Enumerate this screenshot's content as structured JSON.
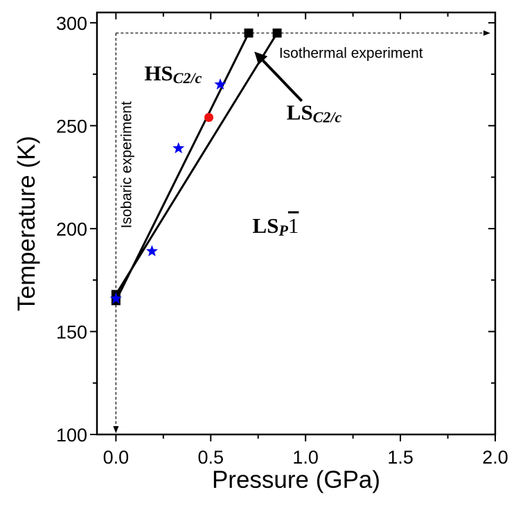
{
  "chart_data": {
    "type": "line",
    "xlabel": "Pressure (GPa)",
    "ylabel": "Temperature (K)",
    "xlim": [
      -0.1,
      2.0
    ],
    "ylim": [
      100,
      305
    ],
    "xticks": [
      {
        "value": 0.0,
        "label": "0.0"
      },
      {
        "value": 0.5,
        "label": "0.5"
      },
      {
        "value": 1.0,
        "label": "1.0"
      },
      {
        "value": 1.5,
        "label": "1.5"
      },
      {
        "value": 2.0,
        "label": "2.0"
      }
    ],
    "yticks": [
      {
        "value": 100,
        "label": "100"
      },
      {
        "value": 150,
        "label": "150"
      },
      {
        "value": 200,
        "label": "200"
      },
      {
        "value": 250,
        "label": "250"
      },
      {
        "value": 300,
        "label": "300"
      }
    ],
    "series": [
      {
        "marker": "square",
        "color": "#000000",
        "points": [
          [
            0.0,
            165
          ],
          [
            0.7,
            295
          ]
        ]
      },
      {
        "marker": "square",
        "color": "#000000",
        "points": [
          [
            0.0,
            168
          ],
          [
            0.85,
            295
          ]
        ]
      },
      {
        "marker": "star",
        "color": "#0000ee",
        "points": [
          [
            0.0,
            166
          ],
          [
            0.19,
            189
          ],
          [
            0.33,
            239
          ],
          [
            0.55,
            270
          ]
        ]
      },
      {
        "marker": "circle",
        "color": "#ee1111",
        "points": [
          [
            0.49,
            254
          ]
        ]
      }
    ],
    "experiments": [
      {
        "label": "Isothermal experiment",
        "from": [
          0.0,
          295
        ],
        "to": [
          1.97,
          295
        ]
      },
      {
        "label": "Isobaric experiment",
        "from": [
          0.0,
          295
        ],
        "to": [
          0.0,
          101
        ]
      }
    ],
    "phase_labels": [
      {
        "base": "HS",
        "sub": "C2/c",
        "x": 0.15,
        "y": 272
      },
      {
        "base": "LS",
        "sub": "C2/c",
        "x": 0.9,
        "y": 253
      },
      {
        "base": "LS",
        "sub": "P",
        "tail": "1",
        "x": 0.72,
        "y": 198
      }
    ],
    "arrow": {
      "from": [
        0.98,
        262
      ],
      "to": [
        0.73,
        286
      ]
    },
    "grid": false
  }
}
